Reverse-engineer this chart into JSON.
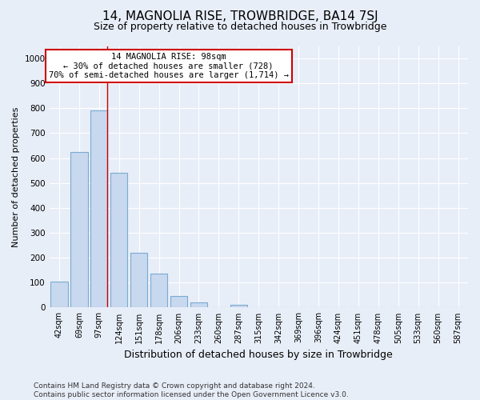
{
  "title": "14, MAGNOLIA RISE, TROWBRIDGE, BA14 7SJ",
  "subtitle": "Size of property relative to detached houses in Trowbridge",
  "xlabel": "Distribution of detached houses by size in Trowbridge",
  "ylabel": "Number of detached properties",
  "bar_labels": [
    "42sqm",
    "69sqm",
    "97sqm",
    "124sqm",
    "151sqm",
    "178sqm",
    "206sqm",
    "233sqm",
    "260sqm",
    "287sqm",
    "315sqm",
    "342sqm",
    "369sqm",
    "396sqm",
    "424sqm",
    "451sqm",
    "478sqm",
    "505sqm",
    "533sqm",
    "560sqm",
    "587sqm"
  ],
  "bar_values": [
    103,
    625,
    790,
    540,
    220,
    135,
    45,
    20,
    0,
    10,
    0,
    0,
    0,
    0,
    0,
    0,
    0,
    0,
    0,
    0,
    0
  ],
  "bar_color": "#c8d8ef",
  "bar_edge_color": "#7aaad0",
  "vline_index": 2,
  "vline_color": "#cc0000",
  "annotation_text_line1": "14 MAGNOLIA RISE: 98sqm",
  "annotation_text_line2": "← 30% of detached houses are smaller (728)",
  "annotation_text_line3": "70% of semi-detached houses are larger (1,714) →",
  "annotation_box_facecolor": "#ffffff",
  "annotation_box_edgecolor": "#cc0000",
  "ylim": [
    0,
    1050
  ],
  "yticks": [
    0,
    100,
    200,
    300,
    400,
    500,
    600,
    700,
    800,
    900,
    1000
  ],
  "bg_color": "#e8eef8",
  "plot_bg_color": "#e8eef8",
  "grid_color": "#ffffff",
  "title_fontsize": 11,
  "subtitle_fontsize": 9,
  "ylabel_fontsize": 8,
  "xlabel_fontsize": 9,
  "tick_fontsize": 7,
  "footer_line1": "Contains HM Land Registry data © Crown copyright and database right 2024.",
  "footer_line2": "Contains public sector information licensed under the Open Government Licence v3.0.",
  "footer_fontsize": 6.5
}
